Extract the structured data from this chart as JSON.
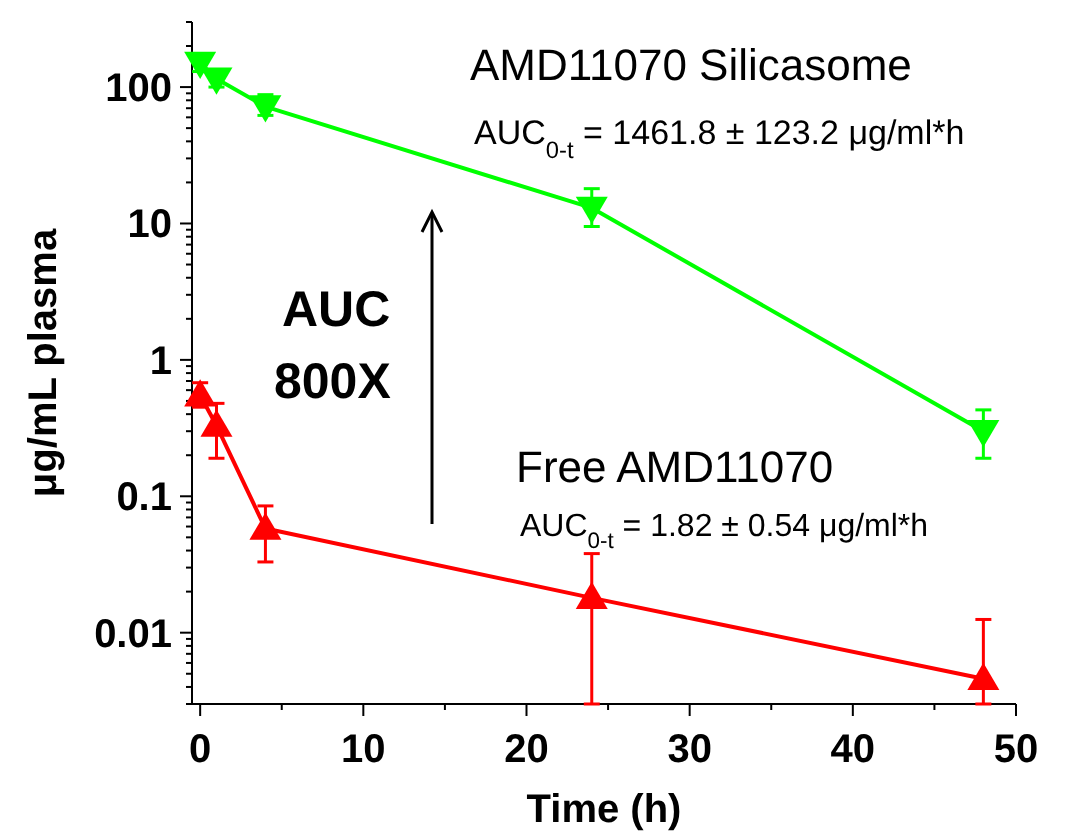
{
  "chart_data": {
    "type": "line",
    "xlabel": "Time (h)",
    "ylabel": "μg/mL plasma",
    "log": "y",
    "xlim": [
      -0.5,
      50
    ],
    "ylim": [
      0.003,
      300
    ],
    "xticks": [
      0,
      {
        "value": 5,
        "label": null
      },
      10,
      {
        "value": 15,
        "label": null
      },
      20,
      {
        "value": 25,
        "label": null
      },
      30,
      {
        "value": 35,
        "label": null
      },
      40,
      {
        "value": 45,
        "label": null
      },
      50
    ],
    "yticks": [
      0.01,
      0.1,
      1,
      10,
      100
    ],
    "grid": false,
    "series": [
      {
        "name": "AMD11070 Silicasome",
        "color": "#00ff00",
        "marker": "triangle-down",
        "x": [
          0,
          1,
          4,
          24,
          48
        ],
        "values": [
          150,
          115,
          72,
          13,
          0.3
        ],
        "errors": [
          [
            130,
            175
          ],
          [
            100,
            130
          ],
          [
            62,
            88
          ],
          [
            9.5,
            18
          ],
          [
            0.19,
            0.43
          ]
        ]
      },
      {
        "name": "Free AMD11070",
        "color": "#ff0000",
        "marker": "triangle",
        "x": [
          0,
          1,
          4,
          24,
          48
        ],
        "values": [
          0.55,
          0.33,
          0.058,
          0.018,
          0.0046
        ],
        "errors": [
          [
            0.45,
            0.68
          ],
          [
            0.19,
            0.48
          ],
          [
            0.033,
            0.085
          ],
          [
            0.003,
            0.038
          ],
          [
            0.003,
            0.0125
          ]
        ]
      }
    ],
    "annotations": [
      "AUC$_{0-t}$ = 1461.8 ± 123.2 μg/ml*h",
      "AUC$_{0-t}$ = 1.82 ± 0.54 μg/ml*h",
      "AUC",
      "800X"
    ]
  }
}
